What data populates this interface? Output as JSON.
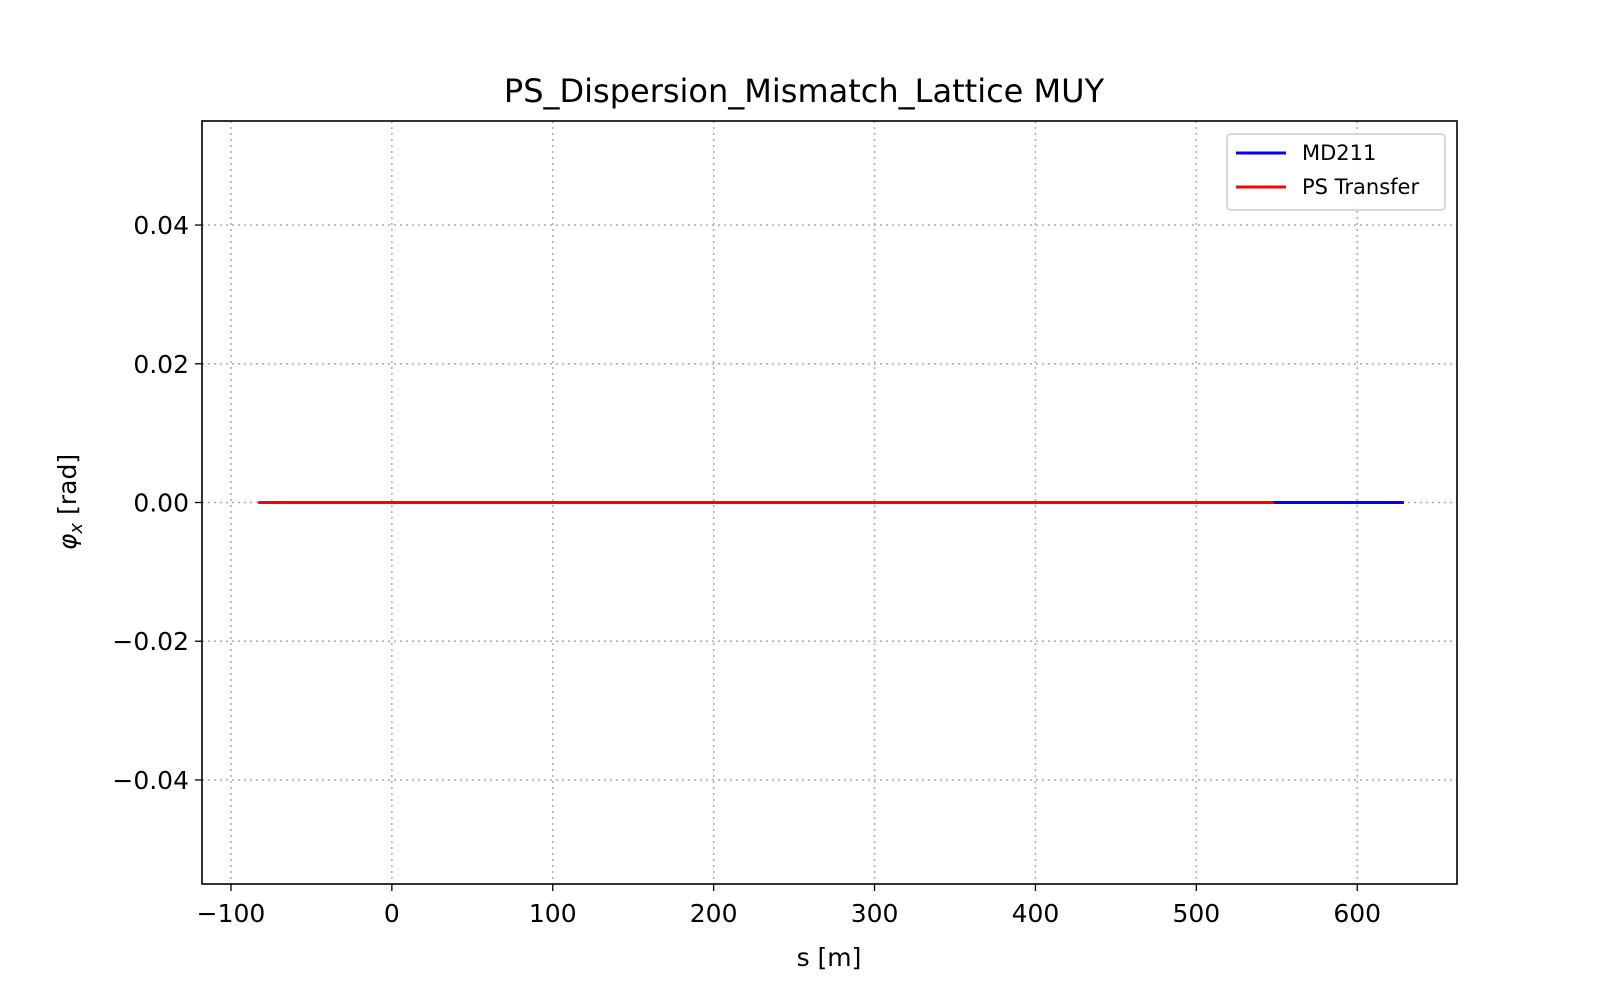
{
  "chart_data": {
    "type": "line",
    "title": "PS_Dispersion_Mismatch_Lattice MUY",
    "xlabel": "s [m]",
    "ylabel": {
      "symbol": "φ",
      "subscript": "x",
      "unit": "[rad]"
    },
    "xlim": [
      -118,
      662
    ],
    "ylim": [
      -0.055,
      0.055
    ],
    "xticks": [
      -100,
      0,
      100,
      200,
      300,
      400,
      500,
      600
    ],
    "xtick_labels": [
      "−100",
      "0",
      "100",
      "200",
      "300",
      "400",
      "500",
      "600"
    ],
    "yticks": [
      0.04,
      0.02,
      0.0,
      -0.02,
      -0.04
    ],
    "ytick_labels": [
      "0.04",
      "0.02",
      "0.00",
      "−0.02",
      "−0.04"
    ],
    "grid": true,
    "legend_position": "top-right",
    "series": [
      {
        "name": "MD211",
        "color": "#0000ff",
        "x": [
          -83,
          0,
          100,
          200,
          300,
          400,
          500,
          548,
          600,
          629
        ],
        "y": [
          0,
          0,
          0,
          0,
          0,
          0,
          0,
          0,
          0,
          0
        ]
      },
      {
        "name": "PS Transfer",
        "color": "#ff0000",
        "x": [
          -83,
          0,
          100,
          200,
          300,
          400,
          500,
          548
        ],
        "y": [
          0,
          0,
          0,
          0,
          0,
          0,
          0,
          0
        ]
      }
    ]
  }
}
